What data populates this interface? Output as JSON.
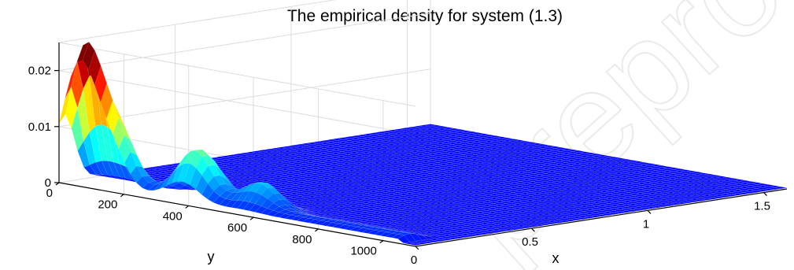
{
  "chart_data": {
    "type": "surface",
    "title": "The empirical density for system (1.3)",
    "xlabel": "x",
    "ylabel": "y",
    "zlabel": "",
    "xlim": [
      0,
      1.6
    ],
    "ylim": [
      0,
      1100
    ],
    "zlim": [
      0,
      0.025
    ],
    "x_ticks": [
      "0",
      "0.5",
      "1",
      "1.5"
    ],
    "y_ticks": [
      "0",
      "200",
      "400",
      "600",
      "800",
      "1000"
    ],
    "z_ticks": [
      "0",
      "0.01",
      "0.02"
    ],
    "colormap": "jet",
    "grid": true,
    "peaks": [
      {
        "x": 0.02,
        "y": 60,
        "z": 0.0225
      },
      {
        "x": 0.03,
        "y": 150,
        "z": 0.01
      },
      {
        "x": 0.05,
        "y": 380,
        "z": 0.0065
      },
      {
        "x": 0.1,
        "y": 560,
        "z": 0.0045
      },
      {
        "x": 0.12,
        "y": 380,
        "z": 0.005
      }
    ]
  },
  "watermark": "preproof"
}
